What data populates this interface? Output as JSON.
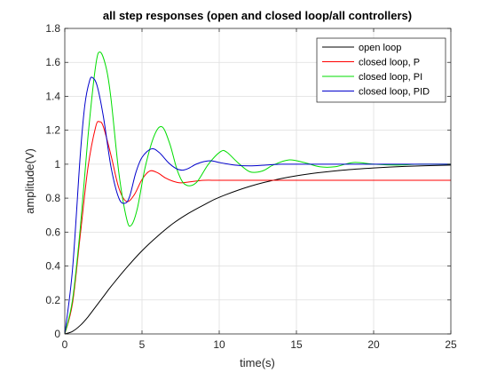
{
  "chart_data": {
    "type": "line",
    "title": "all step responses (open and closed loop/all controllers)",
    "xlabel": "time(s)",
    "ylabel": "amplitude(V)",
    "xlim": [
      0,
      25
    ],
    "ylim": [
      0,
      1.8
    ],
    "xticks": [
      "0",
      "5",
      "10",
      "15",
      "20",
      "25"
    ],
    "yticks": [
      "0",
      "0.2",
      "0.4",
      "0.6",
      "0.8",
      "1",
      "1.2",
      "1.4",
      "1.6",
      "1.8"
    ],
    "grid": true,
    "legend_position": "top-right",
    "series": [
      {
        "name": "open loop",
        "color": "#000000",
        "x": [
          0,
          0.5,
          1,
          1.5,
          2,
          2.5,
          3,
          4,
          5,
          6,
          7,
          8,
          9,
          10,
          12,
          14,
          16,
          18,
          20,
          22,
          25
        ],
        "y": [
          0,
          0.015,
          0.05,
          0.1,
          0.16,
          0.22,
          0.28,
          0.39,
          0.49,
          0.575,
          0.65,
          0.71,
          0.76,
          0.805,
          0.87,
          0.915,
          0.945,
          0.965,
          0.978,
          0.987,
          0.995
        ]
      },
      {
        "name": "closed loop, P",
        "color": "#ff0000",
        "x": [
          0,
          0.5,
          1,
          1.5,
          2,
          2.25,
          2.5,
          3,
          3.5,
          4,
          4.5,
          5,
          5.5,
          6,
          6.5,
          7,
          7.5,
          8,
          9,
          10,
          12,
          15,
          20,
          25
        ],
        "y": [
          0,
          0.18,
          0.58,
          0.98,
          1.22,
          1.25,
          1.22,
          1.05,
          0.86,
          0.78,
          0.82,
          0.91,
          0.96,
          0.95,
          0.92,
          0.9,
          0.89,
          0.895,
          0.905,
          0.905,
          0.905,
          0.905,
          0.905,
          0.905
        ]
      },
      {
        "name": "closed loop, PI",
        "color": "#00dd00",
        "x": [
          0,
          0.5,
          1,
          1.5,
          2,
          2.3,
          2.7,
          3,
          3.5,
          4,
          4.3,
          4.7,
          5.2,
          5.8,
          6.3,
          6.8,
          7.3,
          7.8,
          8.5,
          9.3,
          10.1,
          10.5,
          11.2,
          12,
          12.8,
          13.5,
          14.5,
          15.5,
          16.5,
          17.5,
          18.7,
          20,
          21.5,
          23,
          25
        ],
        "y": [
          0,
          0.2,
          0.62,
          1.16,
          1.58,
          1.66,
          1.56,
          1.38,
          0.95,
          0.68,
          0.64,
          0.74,
          0.98,
          1.17,
          1.22,
          1.12,
          0.96,
          0.88,
          0.89,
          1.0,
          1.075,
          1.07,
          1.01,
          0.955,
          0.96,
          0.995,
          1.025,
          1.01,
          0.985,
          0.985,
          1.01,
          1.0,
          0.995,
          1.0,
          1.0
        ]
      },
      {
        "name": "closed loop, PID",
        "color": "#0000cc",
        "x": [
          0,
          0.5,
          1,
          1.3,
          1.6,
          1.8,
          2.1,
          2.5,
          3,
          3.5,
          3.9,
          4.2,
          4.6,
          5,
          5.6,
          6.1,
          6.7,
          7.2,
          7.6,
          8,
          8.5,
          9,
          9.5,
          10,
          11,
          12,
          13,
          14,
          15,
          17,
          20,
          25
        ],
        "y": [
          0,
          0.38,
          1.05,
          1.35,
          1.49,
          1.51,
          1.46,
          1.28,
          0.98,
          0.8,
          0.77,
          0.81,
          0.95,
          1.04,
          1.09,
          1.07,
          1.01,
          0.975,
          0.965,
          0.975,
          1.0,
          1.015,
          1.02,
          1.01,
          0.995,
          0.99,
          0.995,
          1.0,
          1.0,
          1.0,
          1.0,
          1.0
        ]
      }
    ]
  }
}
